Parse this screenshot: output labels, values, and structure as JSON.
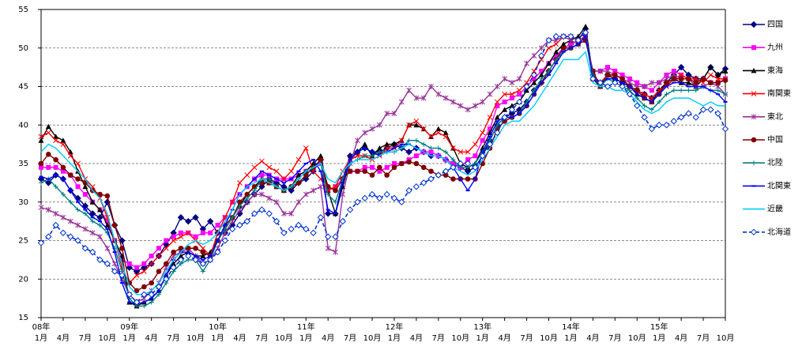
{
  "chart_data": {
    "type": "line",
    "categories": [
      "1月",
      null,
      null,
      "4月",
      null,
      null,
      "7月",
      null,
      null,
      "10月",
      null,
      null,
      "1月",
      null,
      null,
      "4月",
      null,
      null,
      "7月",
      null,
      null,
      "10月",
      null,
      null,
      "1月",
      null,
      null,
      "4月",
      null,
      null,
      "7月",
      null,
      null,
      "10月",
      null,
      null,
      "1月",
      null,
      null,
      "4月",
      null,
      null,
      "7月",
      null,
      null,
      "10月",
      null,
      null,
      "1月",
      null,
      null,
      "4月",
      null,
      null,
      "7月",
      null,
      null,
      "10月",
      null,
      null,
      "1月",
      null,
      null,
      "4月",
      null,
      null,
      "7月",
      null,
      null,
      "10月",
      null,
      null,
      "1月",
      null,
      null,
      "4月",
      null,
      null,
      "7月",
      null,
      null,
      "10月",
      null,
      null,
      "1月",
      null,
      null,
      "4月",
      null,
      null,
      "7月",
      null,
      null,
      "10月"
    ],
    "year_labels": [
      "08年",
      null,
      null,
      null,
      null,
      null,
      null,
      null,
      null,
      null,
      null,
      null,
      "09年",
      null,
      null,
      null,
      null,
      null,
      null,
      null,
      null,
      null,
      null,
      null,
      "10年",
      null,
      null,
      null,
      null,
      null,
      null,
      null,
      null,
      null,
      null,
      null,
      "11年",
      null,
      null,
      null,
      null,
      null,
      null,
      null,
      null,
      null,
      null,
      null,
      "12年",
      null,
      null,
      null,
      null,
      null,
      null,
      null,
      null,
      null,
      null,
      null,
      "13年",
      null,
      null,
      null,
      null,
      null,
      null,
      null,
      null,
      null,
      null,
      null,
      "14年",
      null,
      null,
      null,
      null,
      null,
      null,
      null,
      null,
      null,
      null,
      null,
      "15年",
      null,
      null,
      null,
      null,
      null,
      null,
      null,
      null,
      null
    ],
    "ylim": [
      15,
      55
    ],
    "yticks": [
      15,
      20,
      25,
      30,
      35,
      40,
      45,
      50,
      55
    ],
    "grid": true,
    "legend": "right",
    "series": [
      {
        "name": "四国",
        "color": "#000080",
        "marker": "diamond",
        "values": [
          33,
          32.5,
          33.5,
          33,
          31.5,
          30.5,
          29.5,
          28.5,
          28,
          30,
          27,
          25,
          21.5,
          21,
          21.5,
          22,
          23,
          24.5,
          26,
          28,
          27.5,
          28,
          26.5,
          27.5,
          26,
          26,
          27,
          28.5,
          30,
          31,
          32,
          33,
          32.5,
          32,
          31.5,
          32.5,
          33,
          34,
          35.5,
          28.5,
          28.5,
          33,
          36,
          36.5,
          37,
          36.5,
          36.5,
          37,
          37.5,
          37,
          36.5,
          37,
          36.5,
          36,
          36,
          35.5,
          35,
          34.5,
          34,
          34.5,
          36,
          38,
          40,
          41,
          41.5,
          42,
          43,
          44.5,
          45.5,
          47,
          48.5,
          50,
          50.5,
          51,
          52.5,
          46.5,
          45.5,
          46.5,
          46,
          45.5,
          45,
          44.5,
          44,
          43.5,
          44.5,
          45.5,
          46.5,
          47.5,
          46.5,
          46,
          46,
          47.5,
          46.5,
          47.3
        ]
      },
      {
        "name": "九州",
        "color": "#ff00ff",
        "marker": "square",
        "values": [
          34.5,
          34.5,
          34.5,
          34,
          33.5,
          32,
          31,
          30,
          29,
          27.5,
          25,
          22.5,
          22,
          21.5,
          22,
          23,
          24,
          25,
          25.5,
          26,
          26,
          25.5,
          26,
          26,
          27,
          28,
          30,
          31,
          32,
          33,
          33.5,
          33.5,
          33,
          33,
          33,
          33.5,
          34,
          34.5,
          35,
          31.5,
          32,
          33,
          34,
          34,
          34.5,
          34.5,
          34,
          34.5,
          35,
          35,
          35.5,
          36,
          36.5,
          36.5,
          36,
          35.5,
          35,
          34.5,
          35.5,
          36,
          38,
          39.5,
          42.5,
          43,
          43.5,
          44,
          45,
          46,
          47,
          48,
          49,
          50,
          50.5,
          51,
          51.5,
          47,
          47,
          47.5,
          47,
          46.5,
          46,
          45.5,
          45,
          44.5,
          45.5,
          46.5,
          47,
          46.5,
          46,
          45.5,
          46,
          45.5,
          45.5,
          46
        ]
      },
      {
        "name": "東海",
        "color": "#000000",
        "marker": "triangle",
        "values": [
          38,
          39.8,
          38.5,
          38,
          36.5,
          34,
          32,
          30,
          29,
          27,
          25,
          23,
          17,
          16.5,
          17,
          17.5,
          18.5,
          20.5,
          22,
          23,
          23.5,
          23,
          23,
          23.5,
          25,
          26.5,
          28,
          29.5,
          31,
          32,
          33,
          32.5,
          32,
          31.5,
          32,
          33.5,
          34,
          35,
          36,
          31.5,
          28.5,
          32,
          35.5,
          36.5,
          37.5,
          36,
          37,
          37.5,
          37.5,
          38,
          40,
          40,
          39.5,
          38.5,
          39.5,
          39,
          37,
          35,
          34.5,
          35,
          37,
          39,
          41,
          42,
          42.5,
          43,
          44.5,
          45.5,
          46.5,
          48,
          49.5,
          50.5,
          51,
          51.5,
          52.8,
          46,
          45,
          46.5,
          46,
          45.5,
          45,
          44,
          43.5,
          43,
          44.5,
          45.5,
          46,
          45.5,
          45.5,
          45,
          46,
          47.5,
          46.5,
          47
        ]
      },
      {
        "name": "南関東",
        "color": "#ff0000",
        "marker": "x",
        "values": [
          38.5,
          39,
          38,
          37.5,
          36,
          35,
          33,
          32,
          30.5,
          28,
          25,
          21.5,
          19.5,
          20.5,
          21,
          22,
          23,
          24,
          25,
          25.5,
          26,
          25,
          24,
          23,
          26,
          28,
          30,
          32.5,
          33.5,
          34.5,
          35.3,
          34.5,
          34,
          33,
          34,
          35.5,
          37,
          34,
          33,
          31.5,
          32,
          34,
          35.5,
          36,
          36,
          35.5,
          36,
          37,
          37,
          38,
          40,
          40.5,
          39.5,
          38.5,
          39,
          38.5,
          37,
          36.5,
          36.5,
          37.5,
          39,
          41,
          43,
          44,
          44,
          44.5,
          45.5,
          47,
          48.5,
          50,
          50.5,
          51.5,
          51.5,
          51,
          51.5,
          46,
          45.5,
          46.5,
          46.5,
          46,
          45,
          44.5,
          44,
          43.5,
          44.5,
          45,
          46,
          46.5,
          46,
          46,
          45.5,
          46.5,
          46,
          46
        ]
      },
      {
        "name": "東北",
        "color": "#993399",
        "marker": "star",
        "values": [
          29.3,
          29,
          28.5,
          28,
          27.5,
          27,
          26.5,
          26,
          25.5,
          24,
          22,
          20,
          18,
          17,
          17.5,
          18.5,
          19.5,
          21.5,
          23,
          23.5,
          24,
          23,
          22,
          22.5,
          24,
          26,
          27.5,
          29,
          30,
          31,
          31,
          30.5,
          30,
          28.5,
          28.5,
          30,
          31,
          31.5,
          32,
          24,
          23.5,
          31,
          35,
          38,
          39,
          39.5,
          40,
          41.5,
          41.5,
          43,
          44.5,
          43.5,
          43.5,
          45,
          44,
          43.5,
          43,
          42.5,
          42,
          42.5,
          43,
          44,
          45,
          46,
          45.5,
          46,
          48,
          49,
          50,
          51,
          51,
          51.5,
          51,
          50.5,
          51,
          47,
          47,
          47,
          46.5,
          46,
          45.5,
          45,
          45,
          45.5,
          45.5,
          46,
          46.5,
          46,
          46,
          45,
          45,
          45.5,
          45,
          44
        ]
      },
      {
        "name": "中国",
        "color": "#800000",
        "marker": "circle",
        "values": [
          35,
          36.2,
          35.5,
          34.5,
          33.5,
          33,
          32.5,
          31.5,
          31,
          30.8,
          27,
          24,
          19.5,
          18.5,
          19,
          19.5,
          21,
          22,
          23.5,
          24,
          24,
          24,
          23.5,
          23,
          25,
          27,
          28,
          30,
          31,
          32,
          32.5,
          32.5,
          32,
          31.5,
          32,
          32.5,
          33.5,
          34.5,
          35.5,
          32,
          31.5,
          33,
          34,
          34,
          34,
          33.5,
          34.5,
          33.5,
          34.5,
          35,
          35.2,
          35,
          34.5,
          34,
          33.5,
          33.5,
          33,
          33,
          33,
          33,
          35,
          37,
          39.5,
          40.5,
          41,
          41.5,
          42.5,
          44,
          45.5,
          47,
          48.5,
          50,
          50,
          50.5,
          51,
          47,
          45,
          46.5,
          46.5,
          46,
          45,
          44.5,
          43.5,
          43,
          44,
          45.5,
          46,
          46,
          46,
          45.5,
          46,
          45.5,
          45.5,
          45.8
        ]
      },
      {
        "name": "北陸",
        "color": "#008080",
        "marker": "plus",
        "values": [
          32.5,
          33,
          32,
          31,
          30,
          29,
          28.5,
          27.5,
          27,
          26,
          24,
          21,
          17.5,
          16.5,
          16.5,
          17,
          18,
          19.5,
          21,
          22,
          22.5,
          22.5,
          21,
          22.5,
          25,
          26.5,
          28,
          29.5,
          30.5,
          31.5,
          33,
          33,
          32,
          31.5,
          32,
          33,
          34,
          34.5,
          35,
          31,
          30,
          33,
          35,
          35.5,
          36,
          36,
          36.5,
          36.5,
          36.5,
          37,
          38,
          38,
          37.5,
          37,
          37,
          36.5,
          35.5,
          34.5,
          34.5,
          35,
          36.5,
          38,
          40,
          41,
          41,
          41.5,
          43,
          44.5,
          46,
          47,
          48.5,
          49.5,
          50,
          50.5,
          51.5,
          46.5,
          45,
          46,
          45.5,
          45,
          44.5,
          43.5,
          42.5,
          42,
          43,
          44,
          44.5,
          44.5,
          44.5,
          44.5,
          45,
          44.5,
          44.5,
          44
        ]
      },
      {
        "name": "北関東",
        "color": "#0000ff",
        "marker": "dash",
        "values": [
          33.3,
          33,
          33.5,
          33,
          31.5,
          30,
          29,
          28,
          27.5,
          26.5,
          23.5,
          19.5,
          17,
          16.8,
          17,
          17.5,
          18.5,
          20.5,
          22.5,
          23.5,
          23.5,
          23,
          22.5,
          23,
          25,
          27,
          29,
          31,
          32,
          33,
          34,
          33.5,
          33,
          32.5,
          33,
          34,
          35,
          35.5,
          34,
          29,
          28.5,
          32.5,
          35.5,
          36.5,
          37,
          36.5,
          36,
          36.5,
          37,
          37.5,
          37.5,
          37,
          36.5,
          36,
          36,
          35.5,
          34.5,
          33,
          31.5,
          33,
          36.5,
          38.5,
          40.5,
          41,
          41,
          41.5,
          42.5,
          44,
          45.5,
          46.5,
          48,
          49.5,
          50,
          50.5,
          51.5,
          46,
          45.5,
          46,
          46,
          45.5,
          45,
          44,
          43.5,
          43,
          44,
          45,
          45.5,
          45.5,
          45,
          45,
          45,
          44.5,
          44,
          43
        ]
      },
      {
        "name": "近畿",
        "color": "#00ccff",
        "marker": "none",
        "values": [
          36.5,
          37.5,
          37,
          36,
          35,
          34,
          33,
          31.5,
          30.5,
          28.5,
          25,
          22,
          19,
          18,
          18,
          18.5,
          19.5,
          21,
          22.5,
          23.5,
          24.5,
          25,
          24.5,
          25,
          26,
          27.5,
          29,
          31,
          32,
          32.5,
          33,
          32.5,
          32,
          31.5,
          32,
          33,
          34,
          34.5,
          35,
          33,
          32.5,
          34,
          35,
          35.5,
          35.5,
          35.5,
          36,
          36.5,
          36.5,
          37,
          37.5,
          37,
          36.5,
          36,
          36,
          35.5,
          34.5,
          34,
          33.5,
          34,
          35.5,
          37,
          38.5,
          40,
          40.5,
          40.5,
          41.5,
          42.5,
          44,
          45.5,
          47,
          48.5,
          48.5,
          48.5,
          49.5,
          45.5,
          45,
          45,
          44.5,
          44.5,
          44,
          43,
          42,
          41.5,
          42,
          43,
          43.5,
          43.5,
          43.5,
          43,
          42.5,
          43,
          42.5,
          42.5
        ]
      },
      {
        "name": "北海道",
        "color": "#0033cc",
        "marker": "hollow-diamond",
        "dash": true,
        "values": [
          24.7,
          25.5,
          27,
          26,
          25.5,
          25,
          24,
          23.5,
          22.5,
          22,
          21,
          20.5,
          18,
          17,
          18,
          18,
          19,
          20,
          21.5,
          22.5,
          23,
          22.5,
          22,
          22.5,
          23.5,
          25,
          26.5,
          27,
          27.5,
          28.5,
          29,
          28.5,
          27.5,
          26,
          26.5,
          27,
          26.5,
          26,
          28,
          25.5,
          25.5,
          27.5,
          29,
          30,
          30.5,
          31,
          30.5,
          31,
          30.5,
          30,
          31.5,
          32,
          32.5,
          33,
          33.5,
          34,
          34.5,
          35,
          35,
          34.5,
          36,
          37.5,
          39,
          41,
          42,
          43,
          45,
          46.5,
          49,
          51,
          51.5,
          51.5,
          51.5,
          51,
          52,
          46,
          45.5,
          45,
          45.5,
          45,
          44,
          42.5,
          41,
          39.5,
          40,
          40,
          40.5,
          41,
          41.5,
          41,
          42,
          42,
          41.5,
          39.5
        ]
      }
    ]
  }
}
